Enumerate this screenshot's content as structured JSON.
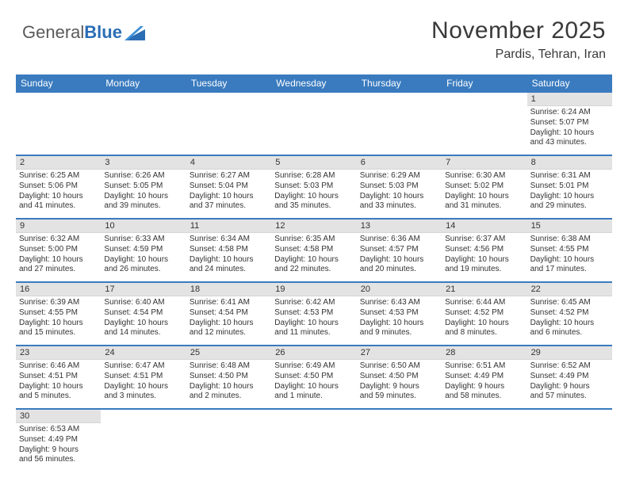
{
  "logo": {
    "part1": "General",
    "part2": "Blue"
  },
  "title": "November 2025",
  "location": "Pardis, Tehran, Iran",
  "colors": {
    "header_bg": "#3a7bbf",
    "header_text": "#ffffff",
    "num_bar_bg": "#e3e3e3",
    "separator": "#3a7bbf",
    "logo_gray": "#5a5a5a",
    "logo_blue": "#2a6db5",
    "text": "#333333"
  },
  "day_names": [
    "Sunday",
    "Monday",
    "Tuesday",
    "Wednesday",
    "Thursday",
    "Friday",
    "Saturday"
  ],
  "weeks": [
    [
      {
        "n": "",
        "lines": []
      },
      {
        "n": "",
        "lines": []
      },
      {
        "n": "",
        "lines": []
      },
      {
        "n": "",
        "lines": []
      },
      {
        "n": "",
        "lines": []
      },
      {
        "n": "",
        "lines": []
      },
      {
        "n": "1",
        "lines": [
          "Sunrise: 6:24 AM",
          "Sunset: 5:07 PM",
          "Daylight: 10 hours",
          "and 43 minutes."
        ]
      }
    ],
    [
      {
        "n": "2",
        "lines": [
          "Sunrise: 6:25 AM",
          "Sunset: 5:06 PM",
          "Daylight: 10 hours",
          "and 41 minutes."
        ]
      },
      {
        "n": "3",
        "lines": [
          "Sunrise: 6:26 AM",
          "Sunset: 5:05 PM",
          "Daylight: 10 hours",
          "and 39 minutes."
        ]
      },
      {
        "n": "4",
        "lines": [
          "Sunrise: 6:27 AM",
          "Sunset: 5:04 PM",
          "Daylight: 10 hours",
          "and 37 minutes."
        ]
      },
      {
        "n": "5",
        "lines": [
          "Sunrise: 6:28 AM",
          "Sunset: 5:03 PM",
          "Daylight: 10 hours",
          "and 35 minutes."
        ]
      },
      {
        "n": "6",
        "lines": [
          "Sunrise: 6:29 AM",
          "Sunset: 5:03 PM",
          "Daylight: 10 hours",
          "and 33 minutes."
        ]
      },
      {
        "n": "7",
        "lines": [
          "Sunrise: 6:30 AM",
          "Sunset: 5:02 PM",
          "Daylight: 10 hours",
          "and 31 minutes."
        ]
      },
      {
        "n": "8",
        "lines": [
          "Sunrise: 6:31 AM",
          "Sunset: 5:01 PM",
          "Daylight: 10 hours",
          "and 29 minutes."
        ]
      }
    ],
    [
      {
        "n": "9",
        "lines": [
          "Sunrise: 6:32 AM",
          "Sunset: 5:00 PM",
          "Daylight: 10 hours",
          "and 27 minutes."
        ]
      },
      {
        "n": "10",
        "lines": [
          "Sunrise: 6:33 AM",
          "Sunset: 4:59 PM",
          "Daylight: 10 hours",
          "and 26 minutes."
        ]
      },
      {
        "n": "11",
        "lines": [
          "Sunrise: 6:34 AM",
          "Sunset: 4:58 PM",
          "Daylight: 10 hours",
          "and 24 minutes."
        ]
      },
      {
        "n": "12",
        "lines": [
          "Sunrise: 6:35 AM",
          "Sunset: 4:58 PM",
          "Daylight: 10 hours",
          "and 22 minutes."
        ]
      },
      {
        "n": "13",
        "lines": [
          "Sunrise: 6:36 AM",
          "Sunset: 4:57 PM",
          "Daylight: 10 hours",
          "and 20 minutes."
        ]
      },
      {
        "n": "14",
        "lines": [
          "Sunrise: 6:37 AM",
          "Sunset: 4:56 PM",
          "Daylight: 10 hours",
          "and 19 minutes."
        ]
      },
      {
        "n": "15",
        "lines": [
          "Sunrise: 6:38 AM",
          "Sunset: 4:55 PM",
          "Daylight: 10 hours",
          "and 17 minutes."
        ]
      }
    ],
    [
      {
        "n": "16",
        "lines": [
          "Sunrise: 6:39 AM",
          "Sunset: 4:55 PM",
          "Daylight: 10 hours",
          "and 15 minutes."
        ]
      },
      {
        "n": "17",
        "lines": [
          "Sunrise: 6:40 AM",
          "Sunset: 4:54 PM",
          "Daylight: 10 hours",
          "and 14 minutes."
        ]
      },
      {
        "n": "18",
        "lines": [
          "Sunrise: 6:41 AM",
          "Sunset: 4:54 PM",
          "Daylight: 10 hours",
          "and 12 minutes."
        ]
      },
      {
        "n": "19",
        "lines": [
          "Sunrise: 6:42 AM",
          "Sunset: 4:53 PM",
          "Daylight: 10 hours",
          "and 11 minutes."
        ]
      },
      {
        "n": "20",
        "lines": [
          "Sunrise: 6:43 AM",
          "Sunset: 4:53 PM",
          "Daylight: 10 hours",
          "and 9 minutes."
        ]
      },
      {
        "n": "21",
        "lines": [
          "Sunrise: 6:44 AM",
          "Sunset: 4:52 PM",
          "Daylight: 10 hours",
          "and 8 minutes."
        ]
      },
      {
        "n": "22",
        "lines": [
          "Sunrise: 6:45 AM",
          "Sunset: 4:52 PM",
          "Daylight: 10 hours",
          "and 6 minutes."
        ]
      }
    ],
    [
      {
        "n": "23",
        "lines": [
          "Sunrise: 6:46 AM",
          "Sunset: 4:51 PM",
          "Daylight: 10 hours",
          "and 5 minutes."
        ]
      },
      {
        "n": "24",
        "lines": [
          "Sunrise: 6:47 AM",
          "Sunset: 4:51 PM",
          "Daylight: 10 hours",
          "and 3 minutes."
        ]
      },
      {
        "n": "25",
        "lines": [
          "Sunrise: 6:48 AM",
          "Sunset: 4:50 PM",
          "Daylight: 10 hours",
          "and 2 minutes."
        ]
      },
      {
        "n": "26",
        "lines": [
          "Sunrise: 6:49 AM",
          "Sunset: 4:50 PM",
          "Daylight: 10 hours",
          "and 1 minute."
        ]
      },
      {
        "n": "27",
        "lines": [
          "Sunrise: 6:50 AM",
          "Sunset: 4:50 PM",
          "Daylight: 9 hours",
          "and 59 minutes."
        ]
      },
      {
        "n": "28",
        "lines": [
          "Sunrise: 6:51 AM",
          "Sunset: 4:49 PM",
          "Daylight: 9 hours",
          "and 58 minutes."
        ]
      },
      {
        "n": "29",
        "lines": [
          "Sunrise: 6:52 AM",
          "Sunset: 4:49 PM",
          "Daylight: 9 hours",
          "and 57 minutes."
        ]
      }
    ],
    [
      {
        "n": "30",
        "lines": [
          "Sunrise: 6:53 AM",
          "Sunset: 4:49 PM",
          "Daylight: 9 hours",
          "and 56 minutes."
        ]
      },
      {
        "n": "",
        "lines": []
      },
      {
        "n": "",
        "lines": []
      },
      {
        "n": "",
        "lines": []
      },
      {
        "n": "",
        "lines": []
      },
      {
        "n": "",
        "lines": []
      },
      {
        "n": "",
        "lines": []
      }
    ]
  ]
}
